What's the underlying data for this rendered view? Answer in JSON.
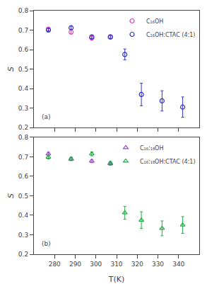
{
  "chart_data": [
    {
      "type": "scatter",
      "ylabel": "S",
      "annotations": [
        "(a)"
      ],
      "xlim": [
        270,
        350
      ],
      "xticks": [
        280,
        290,
        300,
        310,
        320,
        330,
        340
      ],
      "ylim": [
        0.2,
        0.8
      ],
      "yticks": [
        0.2,
        0.3,
        0.4,
        0.5,
        0.6,
        0.7,
        0.8
      ],
      "grid": false,
      "legend": "upper right",
      "tick_labels": "y",
      "series": [
        {
          "name": "C₁₆OH",
          "color": "#dd44bb",
          "marker": "circle",
          "x": [
            277,
            288,
            298,
            307
          ],
          "values": [
            0.705,
            0.69,
            0.66,
            0.665
          ],
          "yerr": [
            0.008,
            0.01,
            0.012,
            0.01
          ]
        },
        {
          "name": "C₁₆OH:CTAC (4:1)",
          "color": "#3333cc",
          "marker": "circle",
          "x": [
            277,
            288,
            298,
            307,
            314,
            322,
            332,
            342
          ],
          "values": [
            0.7,
            0.712,
            0.665,
            0.665,
            0.575,
            0.37,
            0.337,
            0.305
          ],
          "yerr": [
            0.008,
            0.008,
            0.01,
            0.008,
            0.028,
            0.058,
            0.052,
            0.052
          ]
        }
      ]
    },
    {
      "type": "scatter",
      "xlabel": "T(K)",
      "ylabel": "S",
      "annotations": [
        "(b)"
      ],
      "xlim": [
        270,
        350
      ],
      "xticks": [
        280,
        290,
        300,
        310,
        320,
        330,
        340
      ],
      "ylim": [
        0.2,
        0.8
      ],
      "yticks": [
        0.2,
        0.3,
        0.4,
        0.5,
        0.6,
        0.7,
        0.8
      ],
      "grid": false,
      "legend": "upper right",
      "series": [
        {
          "name": "C₁₆:₁₈OH",
          "color": "#9944cc",
          "marker": "triangle",
          "x": [
            277,
            288,
            298,
            307
          ],
          "values": [
            0.715,
            0.688,
            0.678,
            0.665
          ],
          "yerr": [
            0.008,
            0.008,
            0.008,
            0.008
          ]
        },
        {
          "name": "C₁₆:₁₈OH:CTAC (4:1)",
          "color": "#22aa44",
          "marker": "triangle",
          "x": [
            277,
            288,
            298,
            307,
            314,
            322,
            332,
            342
          ],
          "values": [
            0.698,
            0.69,
            0.715,
            0.668,
            0.413,
            0.375,
            0.333,
            0.35
          ],
          "yerr": [
            0.01,
            0.008,
            0.01,
            0.008,
            0.033,
            0.043,
            0.038,
            0.043
          ]
        }
      ]
    }
  ]
}
